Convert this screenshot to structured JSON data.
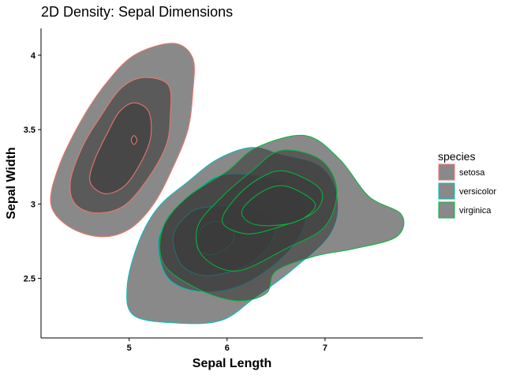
{
  "chart_data": {
    "type": "density2d",
    "title": "2D Density: Sepal Dimensions",
    "xlabel": "Sepal Length",
    "ylabel": "Sepal Width",
    "xlim": [
      4.1,
      8.0
    ],
    "ylim": [
      2.1,
      4.18
    ],
    "x_ticks": [
      5,
      6,
      7
    ],
    "y_ticks": [
      2.5,
      3,
      3.5,
      4
    ],
    "grid": false,
    "fill_color": "#3b3b3b",
    "legend": {
      "title": "species",
      "position": "right"
    },
    "series": [
      {
        "name": "setosa",
        "color": "#F8766D",
        "levels": [
          [
            [
              5.45,
              4.08
            ],
            [
              5.65,
              3.98
            ],
            [
              5.65,
              3.75
            ],
            [
              5.6,
              3.5
            ],
            [
              5.45,
              3.25
            ],
            [
              5.25,
              3.0
            ],
            [
              5.0,
              2.83
            ],
            [
              4.7,
              2.78
            ],
            [
              4.38,
              2.85
            ],
            [
              4.2,
              3.0
            ],
            [
              4.28,
              3.25
            ],
            [
              4.5,
              3.55
            ],
            [
              4.75,
              3.8
            ],
            [
              5.05,
              4.0
            ]
          ],
          [
            [
              5.15,
              3.85
            ],
            [
              5.4,
              3.8
            ],
            [
              5.42,
              3.6
            ],
            [
              5.38,
              3.4
            ],
            [
              5.2,
              3.18
            ],
            [
              4.95,
              2.99
            ],
            [
              4.67,
              2.94
            ],
            [
              4.45,
              3.0
            ],
            [
              4.4,
              3.15
            ],
            [
              4.52,
              3.38
            ],
            [
              4.7,
              3.58
            ],
            [
              4.92,
              3.78
            ]
          ],
          [
            [
              5.05,
              3.68
            ],
            [
              5.2,
              3.62
            ],
            [
              5.22,
              3.45
            ],
            [
              5.12,
              3.28
            ],
            [
              4.95,
              3.12
            ],
            [
              4.75,
              3.07
            ],
            [
              4.6,
              3.15
            ],
            [
              4.65,
              3.3
            ],
            [
              4.78,
              3.48
            ],
            [
              4.9,
              3.62
            ]
          ],
          [
            [
              5.05,
              3.46
            ],
            [
              5.08,
              3.43
            ],
            [
              5.05,
              3.4
            ],
            [
              5.02,
              3.43
            ]
          ]
        ]
      },
      {
        "name": "versicolor",
        "color": "#00BFC4",
        "levels": [
          [
            [
              6.25,
              3.38
            ],
            [
              6.55,
              3.33
            ],
            [
              6.95,
              3.25
            ],
            [
              7.12,
              3.05
            ],
            [
              7.05,
              2.8
            ],
            [
              6.65,
              2.55
            ],
            [
              6.3,
              2.38
            ],
            [
              5.95,
              2.22
            ],
            [
              5.5,
              2.2
            ],
            [
              5.05,
              2.25
            ],
            [
              4.98,
              2.45
            ],
            [
              5.1,
              2.75
            ],
            [
              5.3,
              2.98
            ],
            [
              5.6,
              3.15
            ],
            [
              5.9,
              3.3
            ]
          ],
          [
            [
              6.0,
              3.2
            ],
            [
              6.55,
              3.15
            ],
            [
              6.8,
              2.95
            ],
            [
              6.65,
              2.7
            ],
            [
              6.2,
              2.47
            ],
            [
              5.75,
              2.41
            ],
            [
              5.4,
              2.5
            ],
            [
              5.3,
              2.75
            ],
            [
              5.45,
              2.95
            ],
            [
              5.7,
              3.1
            ]
          ],
          [
            [
              5.8,
              2.98
            ],
            [
              6.25,
              2.98
            ],
            [
              6.5,
              2.85
            ],
            [
              6.3,
              2.63
            ],
            [
              5.85,
              2.52
            ],
            [
              5.55,
              2.58
            ],
            [
              5.45,
              2.78
            ],
            [
              5.6,
              2.93
            ]
          ],
          [
            [
              5.85,
              2.88
            ],
            [
              6.05,
              2.86
            ],
            [
              6.05,
              2.74
            ],
            [
              5.85,
              2.66
            ],
            [
              5.7,
              2.7
            ],
            [
              5.72,
              2.82
            ]
          ]
        ]
      },
      {
        "name": "virginica",
        "color": "#00BA38",
        "levels": [
          [
            [
              6.3,
              3.38
            ],
            [
              6.8,
              3.46
            ],
            [
              7.15,
              3.3
            ],
            [
              7.45,
              3.05
            ],
            [
              7.78,
              2.93
            ],
            [
              7.73,
              2.78
            ],
            [
              7.3,
              2.7
            ],
            [
              6.9,
              2.65
            ],
            [
              6.5,
              2.55
            ],
            [
              6.4,
              2.4
            ],
            [
              6.1,
              2.35
            ],
            [
              5.7,
              2.43
            ],
            [
              5.35,
              2.6
            ],
            [
              5.35,
              2.85
            ],
            [
              5.6,
              3.05
            ],
            [
              6.0,
              3.22
            ]
          ],
          [
            [
              6.55,
              3.36
            ],
            [
              6.95,
              3.3
            ],
            [
              7.12,
              3.1
            ],
            [
              7.0,
              2.85
            ],
            [
              6.6,
              2.7
            ],
            [
              6.1,
              2.55
            ],
            [
              5.75,
              2.65
            ],
            [
              5.7,
              2.85
            ],
            [
              5.95,
              3.05
            ],
            [
              6.25,
              3.22
            ]
          ],
          [
            [
              6.6,
              3.22
            ],
            [
              6.95,
              3.1
            ],
            [
              6.9,
              2.95
            ],
            [
              6.55,
              2.85
            ],
            [
              6.2,
              2.8
            ],
            [
              5.95,
              2.88
            ],
            [
              6.1,
              3.05
            ],
            [
              6.35,
              3.18
            ]
          ],
          [
            [
              6.6,
              3.12
            ],
            [
              6.9,
              3.0
            ],
            [
              6.7,
              2.88
            ],
            [
              6.3,
              2.86
            ],
            [
              6.15,
              2.95
            ],
            [
              6.35,
              3.08
            ]
          ]
        ]
      }
    ]
  }
}
